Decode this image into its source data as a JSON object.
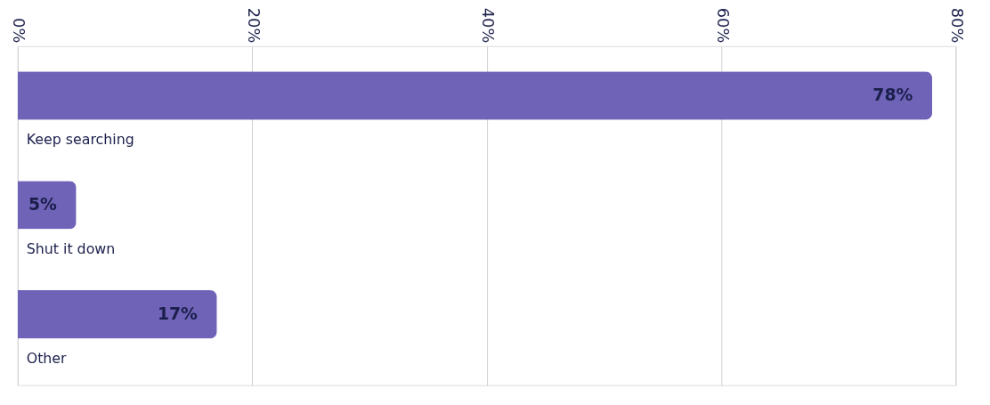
{
  "chart_data": {
    "type": "bar",
    "orientation": "horizontal",
    "categories": [
      "Keep searching",
      "Shut it down",
      "Other"
    ],
    "values": [
      78,
      5,
      17
    ],
    "value_labels": [
      "78%",
      "5%",
      "17%"
    ],
    "color": "#6f63b8",
    "xlim": [
      0,
      80
    ],
    "xticks": [
      {
        "value": 0,
        "label": "0%"
      },
      {
        "value": 20,
        "label": "20%"
      },
      {
        "value": 40,
        "label": "40%"
      },
      {
        "value": 60,
        "label": "60%"
      },
      {
        "value": 80,
        "label": "80%"
      }
    ],
    "grid": "x"
  }
}
